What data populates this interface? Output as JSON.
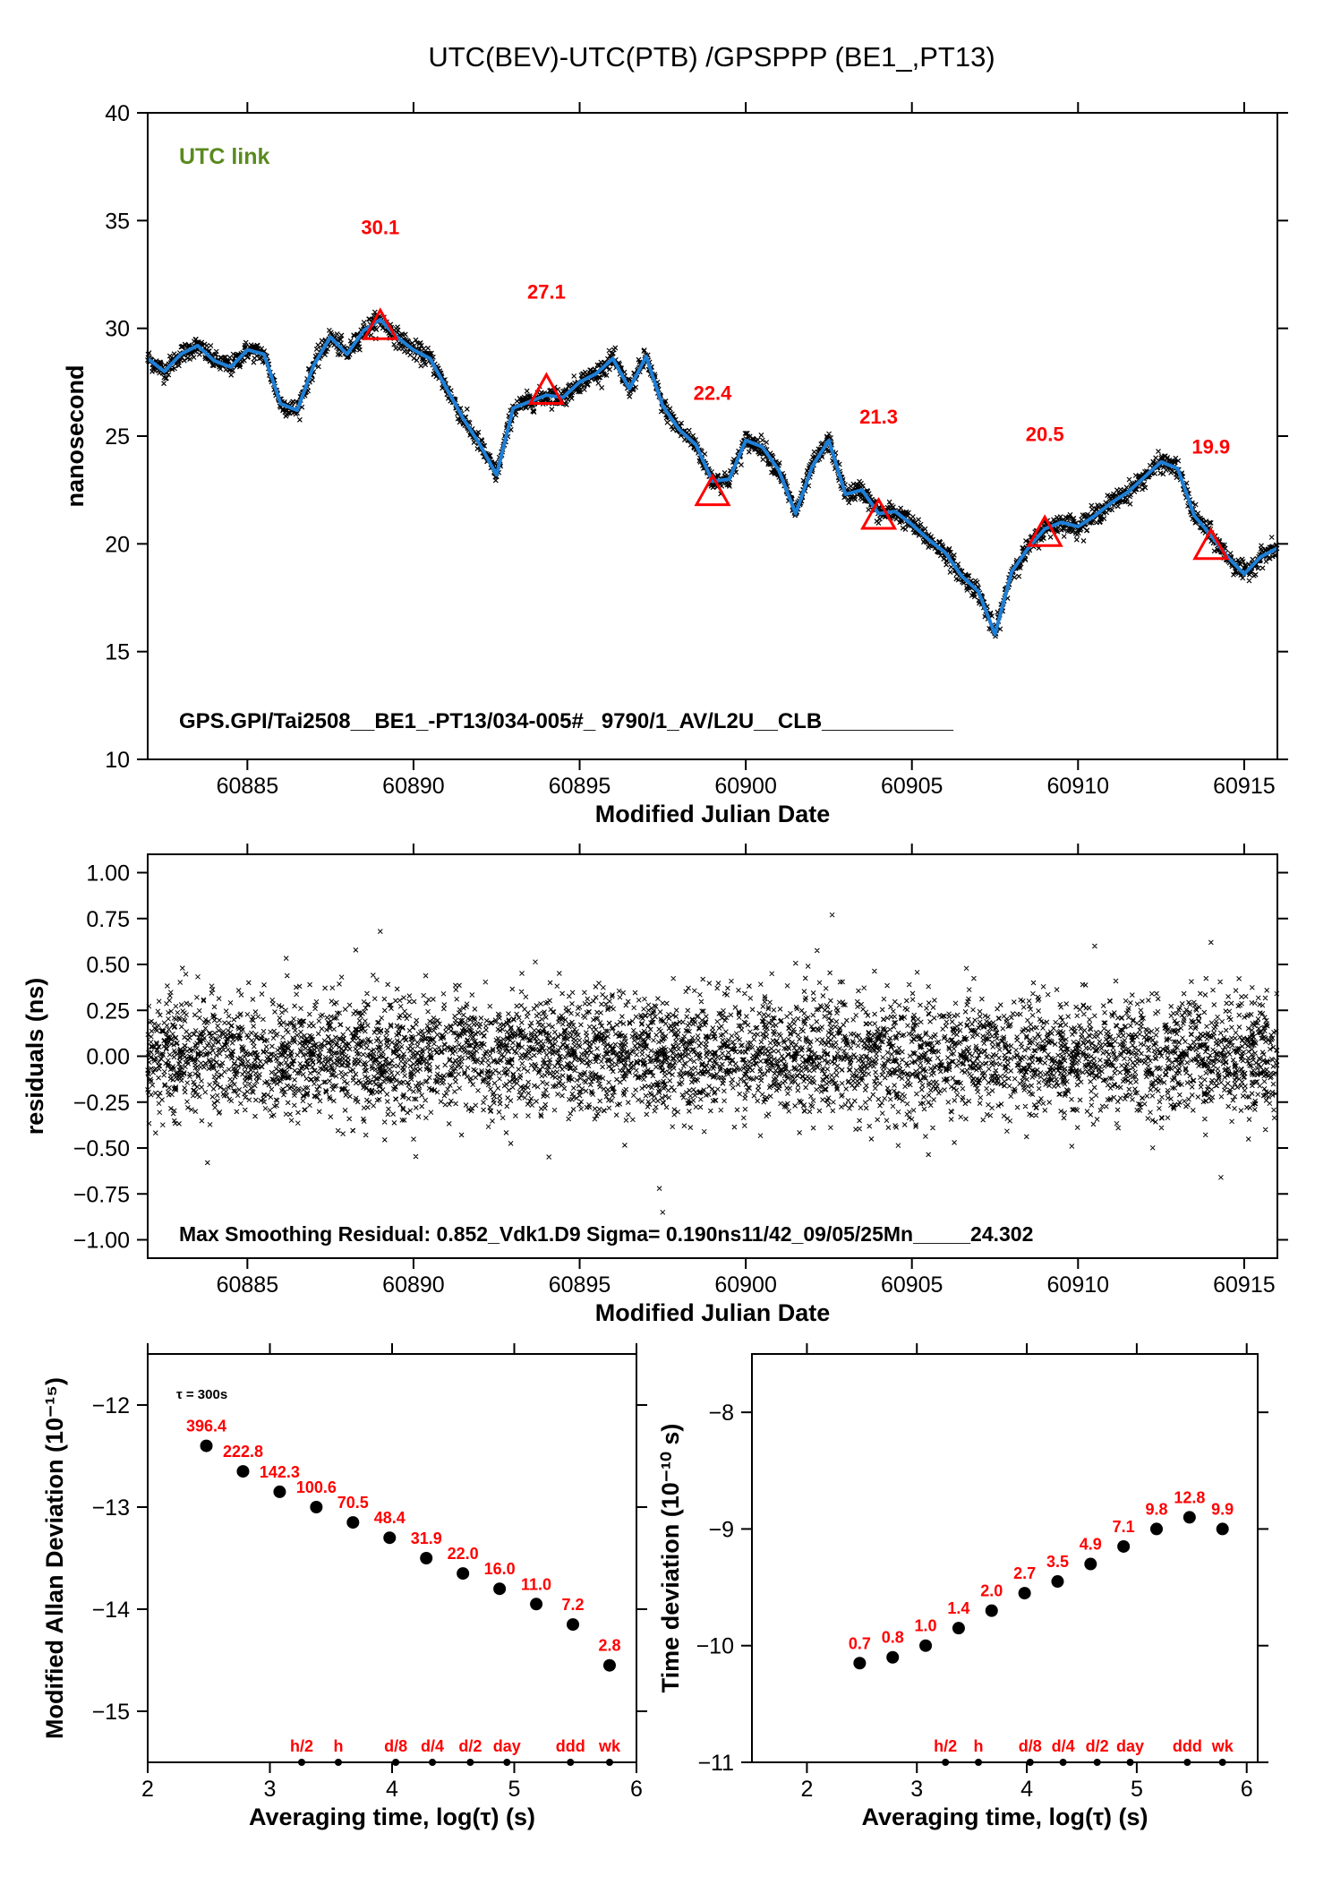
{
  "title": "UTC(BEV)-UTC(PTB)  /GPSPPP  (BE1_,PT13)",
  "colors": {
    "accent_line": "#1e7fd6",
    "raw_points": "#000000",
    "annotation": "#ff0000",
    "link_label": "#5a8a1e"
  },
  "chart_data": [
    {
      "type": "line",
      "title": "UTC(BEV)-UTC(PTB)  /GPSPPP  (BE1_,PT13)",
      "xlabel": "Modified Julian Date",
      "ylabel": "nanosecond",
      "xlim": [
        60882,
        60916
      ],
      "ylim": [
        10,
        40
      ],
      "xticks": [
        60885,
        60890,
        60895,
        60900,
        60905,
        60910,
        60915
      ],
      "xtick_labels": [
        "60885",
        "60890",
        "60895",
        "60900",
        "60905",
        "60910",
        "60915"
      ],
      "yticks": [
        10,
        15,
        20,
        25,
        30,
        35,
        40
      ],
      "ytick_labels": [
        "10",
        "15",
        "20",
        "25",
        "30",
        "35",
        "40"
      ],
      "link_label": "UTC link",
      "info_text": "GPS.GPI/Tai2508__BE1_-PT13/034-005#_  9790/1_AV/L2U__CLB___________",
      "series": [
        {
          "x": [
            60882.0,
            60882.5,
            60883.0,
            60883.5,
            60884.0,
            60884.5,
            60885.0,
            60885.5,
            60886.0,
            60886.5,
            60887.0,
            60887.5,
            60888.0,
            60888.5,
            60889.0,
            60889.5,
            60890.0,
            60890.5,
            60891.0,
            60891.5,
            60892.0,
            60892.5,
            60893.0,
            60893.5,
            60894.0,
            60894.5,
            60895.0,
            60895.5,
            60896.0,
            60896.5,
            60897.0,
            60897.5,
            60898.0,
            60898.5,
            60899.0,
            60899.5,
            60900.0,
            60900.5,
            60901.0,
            60901.5,
            60902.0,
            60902.5,
            60903.0,
            60903.5,
            60904.0,
            60904.5,
            60905.0,
            60905.5,
            60906.0,
            60906.5,
            60907.0,
            60907.5,
            60908.0,
            60908.5,
            60909.0,
            60909.5,
            60910.0,
            60910.5,
            60911.0,
            60911.5,
            60912.0,
            60912.5,
            60913.0,
            60913.5,
            60914.0,
            60914.5,
            60915.0,
            60915.5,
            60916.0
          ],
          "values": [
            28.6,
            28.0,
            28.8,
            29.2,
            28.5,
            28.2,
            29.0,
            28.8,
            26.5,
            26.2,
            28.3,
            29.6,
            28.8,
            29.9,
            30.4,
            29.6,
            29.0,
            28.6,
            27.2,
            25.8,
            24.6,
            23.2,
            26.3,
            26.6,
            26.9,
            26.8,
            27.5,
            27.9,
            28.6,
            27.2,
            28.7,
            26.4,
            25.3,
            24.6,
            22.9,
            23.0,
            24.8,
            24.5,
            23.4,
            21.4,
            23.6,
            24.8,
            22.3,
            22.5,
            21.4,
            21.5,
            20.9,
            20.2,
            19.6,
            18.5,
            17.8,
            15.8,
            18.7,
            19.8,
            20.7,
            21.0,
            20.8,
            21.3,
            21.9,
            22.4,
            23.1,
            23.8,
            23.5,
            21.3,
            20.4,
            19.4,
            18.6,
            19.4,
            19.8
          ]
        }
      ],
      "markers": [
        {
          "x": 60889.0,
          "y": 30.1,
          "label": "30.1"
        },
        {
          "x": 60894.0,
          "y": 27.1,
          "label": "27.1"
        },
        {
          "x": 60899.0,
          "y": 22.4,
          "label": "22.4"
        },
        {
          "x": 60904.0,
          "y": 21.3,
          "label": "21.3"
        },
        {
          "x": 60909.0,
          "y": 20.5,
          "label": "20.5"
        },
        {
          "x": 60914.0,
          "y": 19.9,
          "label": "19.9"
        }
      ]
    },
    {
      "type": "scatter",
      "xlabel": "Modified Julian Date",
      "ylabel": "residuals (ns)",
      "xlim": [
        60882,
        60916
      ],
      "ylim": [
        -1.1,
        1.1
      ],
      "xticks": [
        60885,
        60890,
        60895,
        60900,
        60905,
        60910,
        60915
      ],
      "xtick_labels": [
        "60885",
        "60890",
        "60895",
        "60900",
        "60905",
        "60910",
        "60915"
      ],
      "yticks": [
        1.0,
        0.75,
        0.5,
        0.25,
        0.0,
        -0.25,
        -0.5,
        -0.75,
        -1.0
      ],
      "ytick_labels": [
        "1.00",
        "0.75",
        "0.50",
        "0.25",
        "0.00",
        "−0.25",
        "−0.50",
        "−0.75",
        "−1.00"
      ],
      "info_text": "Max Smoothing Residual: 0.852_Vdk1.D9  Sigma= 0.190ns11/42_09/05/25Mn_____24.302",
      "sigma": 0.19,
      "max_residual": 0.852,
      "outliers": [
        {
          "x": 60889.0,
          "y": 0.68
        },
        {
          "x": 60902.6,
          "y": 0.77
        },
        {
          "x": 60897.5,
          "y": -0.85
        },
        {
          "x": 60897.4,
          "y": -0.72
        },
        {
          "x": 60883.8,
          "y": -0.58
        },
        {
          "x": 60914.3,
          "y": -0.66
        },
        {
          "x": 60910.5,
          "y": 0.6
        },
        {
          "x": 60914.0,
          "y": 0.62
        }
      ]
    },
    {
      "type": "scatter",
      "xlabel": "Averaging time, log(τ) (s)",
      "ylabel": "Modified Allan Deviation (10⁻¹⁵)",
      "xlim": [
        2,
        6
      ],
      "ylim": [
        -15.5,
        -11.5
      ],
      "xticks": [
        2,
        3,
        4,
        5,
        6
      ],
      "xtick_labels": [
        "2",
        "3",
        "4",
        "5",
        "6"
      ],
      "yticks": [
        -12,
        -13,
        -14,
        -15
      ],
      "ytick_labels": [
        "−12",
        "−13",
        "−14",
        "−15"
      ],
      "tau_note": "τ = 300s",
      "x": [
        2.48,
        2.78,
        3.08,
        3.38,
        3.68,
        3.98,
        4.28,
        4.58,
        4.88,
        5.18,
        5.48,
        5.78
      ],
      "values": [
        -12.4,
        -12.65,
        -12.85,
        -13.0,
        -13.15,
        -13.3,
        -13.5,
        -13.65,
        -13.8,
        -13.95,
        -14.15,
        -14.55
      ],
      "labels": [
        "396.4",
        "222.8",
        "142.3",
        "100.6",
        "70.5",
        "48.4",
        "31.9",
        "22.0",
        "16.0",
        "11.0",
        "7.2",
        "2.8"
      ],
      "period_marks": [
        {
          "x": 3.26,
          "label": "h/2"
        },
        {
          "x": 3.56,
          "label": "h"
        },
        {
          "x": 4.03,
          "label": "d/8"
        },
        {
          "x": 4.33,
          "label": "d/4"
        },
        {
          "x": 4.64,
          "label": "d/2"
        },
        {
          "x": 4.94,
          "label": "day"
        },
        {
          "x": 5.46,
          "label": "ddd"
        },
        {
          "x": 5.78,
          "label": "wk"
        }
      ]
    },
    {
      "type": "scatter",
      "xlabel": "Averaging time, log(τ) (s)",
      "ylabel": "Time deviation (10⁻¹⁰ s)",
      "xlim": [
        1.5,
        6.1
      ],
      "ylim": [
        -11,
        -7.5
      ],
      "xticks": [
        2,
        3,
        4,
        5,
        6
      ],
      "xtick_labels": [
        "2",
        "3",
        "4",
        "5",
        "6"
      ],
      "yticks": [
        -8,
        -9,
        -10,
        -11
      ],
      "ytick_labels": [
        "−8",
        "−9",
        "−10",
        "−11"
      ],
      "x": [
        2.48,
        2.78,
        3.08,
        3.38,
        3.68,
        3.98,
        4.28,
        4.58,
        4.88,
        5.18,
        5.48,
        5.78
      ],
      "values": [
        -10.15,
        -10.1,
        -10.0,
        -9.85,
        -9.7,
        -9.55,
        -9.45,
        -9.3,
        -9.15,
        -9.0,
        -8.9,
        -9.0
      ],
      "labels": [
        "0.7",
        "0.8",
        "1.0",
        "1.4",
        "2.0",
        "2.7",
        "3.5",
        "4.9",
        "7.1",
        "9.8",
        "12.8",
        "9.9"
      ],
      "period_marks": [
        {
          "x": 3.26,
          "label": "h/2"
        },
        {
          "x": 3.56,
          "label": "h"
        },
        {
          "x": 4.03,
          "label": "d/8"
        },
        {
          "x": 4.33,
          "label": "d/4"
        },
        {
          "x": 4.64,
          "label": "d/2"
        },
        {
          "x": 4.94,
          "label": "day"
        },
        {
          "x": 5.46,
          "label": "ddd"
        },
        {
          "x": 5.78,
          "label": "wk"
        }
      ]
    }
  ]
}
